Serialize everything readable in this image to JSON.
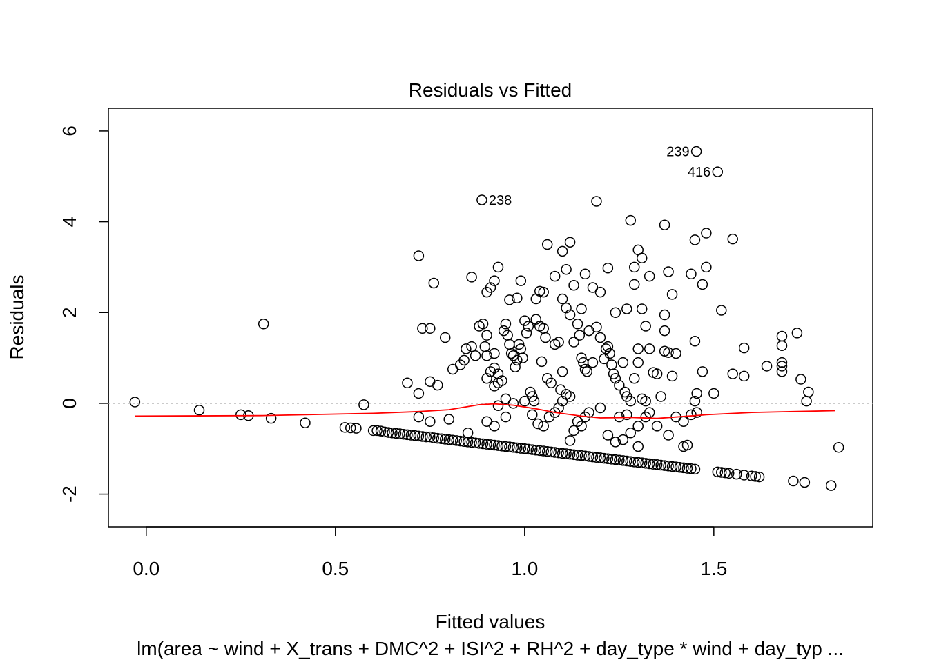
{
  "chart_data": {
    "type": "scatter",
    "title": "Residuals vs Fitted",
    "xlabel": "Fitted values",
    "ylabel": "Residuals",
    "subtitle": "lm(area ~ wind + X_trans + DMC^2 + ISI^2 + RH^2 + day_type * wind + day_typ ...",
    "xlim": [
      -0.1,
      1.92
    ],
    "ylim": [
      -2.72,
      6.5
    ],
    "x_ticks": [
      0.0,
      0.5,
      1.0,
      1.5
    ],
    "x_tick_labels": [
      "0.0",
      "0.5",
      "1.0",
      "1.5"
    ],
    "y_ticks": [
      -2,
      0,
      2,
      4,
      6
    ],
    "y_tick_labels": [
      "-2",
      "0",
      "2",
      "4",
      "6"
    ],
    "reference_line": {
      "y": 0,
      "style": "dotted",
      "color": "#aaaaaa"
    },
    "smooth_line": {
      "color": "#ff0000",
      "points": [
        [
          -0.03,
          -0.28
        ],
        [
          0.3,
          -0.27
        ],
        [
          0.6,
          -0.22
        ],
        [
          0.72,
          -0.18
        ],
        [
          0.8,
          -0.14
        ],
        [
          0.88,
          -0.03
        ],
        [
          0.92,
          -0.01
        ],
        [
          0.97,
          -0.04
        ],
        [
          1.03,
          -0.12
        ],
        [
          1.08,
          -0.2
        ],
        [
          1.15,
          -0.28
        ],
        [
          1.2,
          -0.32
        ],
        [
          1.28,
          -0.31
        ],
        [
          1.35,
          -0.33
        ],
        [
          1.4,
          -0.3
        ],
        [
          1.48,
          -0.25
        ],
        [
          1.6,
          -0.2
        ],
        [
          1.82,
          -0.16
        ]
      ]
    },
    "labeled_points": [
      {
        "label": "239",
        "x": 1.454,
        "y": 5.55
      },
      {
        "label": "416",
        "x": 1.51,
        "y": 5.1
      },
      {
        "label": "238",
        "x": 0.887,
        "y": 4.48
      }
    ],
    "points": [
      [
        -0.03,
        0.03
      ],
      [
        0.14,
        -0.15
      ],
      [
        0.25,
        -0.25
      ],
      [
        0.27,
        -0.27
      ],
      [
        0.31,
        1.75
      ],
      [
        0.33,
        -0.33
      ],
      [
        0.42,
        -0.43
      ],
      [
        0.525,
        -0.53
      ],
      [
        0.54,
        -0.54
      ],
      [
        0.555,
        -0.55
      ],
      [
        0.575,
        -0.03
      ],
      [
        0.887,
        4.48
      ],
      [
        1.19,
        4.45
      ],
      [
        1.454,
        5.55
      ],
      [
        1.51,
        5.1
      ],
      [
        0.72,
        3.25
      ],
      [
        0.76,
        2.65
      ],
      [
        0.86,
        2.78
      ],
      [
        0.93,
        3.0
      ],
      [
        0.91,
        2.55
      ],
      [
        0.9,
        2.45
      ],
      [
        0.92,
        2.7
      ],
      [
        0.96,
        2.28
      ],
      [
        0.98,
        2.32
      ],
      [
        0.99,
        2.7
      ],
      [
        1.06,
        3.5
      ],
      [
        1.1,
        3.35
      ],
      [
        1.12,
        3.55
      ],
      [
        1.08,
        2.8
      ],
      [
        1.11,
        2.95
      ],
      [
        1.13,
        2.6
      ],
      [
        1.16,
        2.85
      ],
      [
        1.04,
        2.47
      ],
      [
        1.05,
        2.45
      ],
      [
        1.03,
        2.3
      ],
      [
        1.1,
        2.3
      ],
      [
        1.11,
        2.1
      ],
      [
        1.12,
        1.95
      ],
      [
        1.15,
        2.08
      ],
      [
        1.18,
        2.55
      ],
      [
        1.2,
        2.45
      ],
      [
        1.22,
        2.98
      ],
      [
        1.28,
        4.03
      ],
      [
        1.3,
        3.38
      ],
      [
        1.31,
        3.2
      ],
      [
        1.29,
        3.0
      ],
      [
        1.33,
        2.8
      ],
      [
        1.29,
        2.62
      ],
      [
        1.37,
        3.93
      ],
      [
        1.38,
        2.9
      ],
      [
        1.39,
        2.4
      ],
      [
        1.31,
        2.08
      ],
      [
        1.32,
        1.7
      ],
      [
        1.37,
        1.95
      ],
      [
        1.37,
        1.6
      ],
      [
        1.27,
        2.08
      ],
      [
        1.24,
        2.0
      ],
      [
        1.44,
        2.85
      ],
      [
        1.45,
        3.6
      ],
      [
        1.48,
        3.75
      ],
      [
        1.48,
        3.0
      ],
      [
        1.47,
        2.62
      ],
      [
        1.55,
        3.62
      ],
      [
        1.52,
        2.05
      ],
      [
        1.45,
        1.37
      ],
      [
        1.47,
        0.7
      ],
      [
        1.5,
        0.22
      ],
      [
        1.55,
        0.65
      ],
      [
        1.58,
        1.22
      ],
      [
        1.58,
        0.6
      ],
      [
        1.64,
        0.82
      ],
      [
        1.68,
        1.48
      ],
      [
        1.68,
        1.27
      ],
      [
        1.68,
        0.9
      ],
      [
        1.68,
        0.82
      ],
      [
        1.68,
        0.7
      ],
      [
        1.72,
        1.55
      ],
      [
        1.73,
        0.53
      ],
      [
        1.75,
        0.25
      ],
      [
        1.745,
        0.05
      ],
      [
        0.73,
        1.65
      ],
      [
        0.75,
        1.65
      ],
      [
        0.79,
        1.45
      ],
      [
        0.75,
        0.48
      ],
      [
        0.77,
        0.4
      ],
      [
        0.72,
        0.22
      ],
      [
        0.69,
        0.45
      ],
      [
        0.81,
        0.75
      ],
      [
        0.83,
        0.85
      ],
      [
        0.84,
        0.95
      ],
      [
        0.845,
        1.2
      ],
      [
        0.86,
        1.25
      ],
      [
        0.87,
        1.05
      ],
      [
        0.88,
        1.7
      ],
      [
        0.89,
        1.75
      ],
      [
        0.9,
        1.5
      ],
      [
        0.895,
        1.25
      ],
      [
        0.9,
        1.05
      ],
      [
        0.92,
        1.1
      ],
      [
        0.9,
        0.55
      ],
      [
        0.91,
        0.7
      ],
      [
        0.92,
        0.78
      ],
      [
        0.93,
        0.65
      ],
      [
        0.92,
        0.38
      ],
      [
        0.93,
        0.45
      ],
      [
        0.94,
        0.5
      ],
      [
        0.945,
        1.6
      ],
      [
        0.95,
        1.75
      ],
      [
        0.955,
        1.5
      ],
      [
        0.96,
        1.3
      ],
      [
        0.965,
        1.1
      ],
      [
        0.97,
        1.05
      ],
      [
        0.975,
        0.8
      ],
      [
        0.98,
        0.95
      ],
      [
        0.985,
        1.3
      ],
      [
        0.99,
        1.2
      ],
      [
        0.995,
        1.0
      ],
      [
        1.0,
        1.82
      ],
      [
        1.005,
        1.55
      ],
      [
        1.01,
        1.7
      ],
      [
        1.015,
        0.25
      ],
      [
        1.02,
        0.15
      ],
      [
        1.025,
        0.05
      ],
      [
        1.03,
        1.85
      ],
      [
        1.04,
        1.7
      ],
      [
        1.045,
        0.92
      ],
      [
        1.05,
        1.65
      ],
      [
        1.055,
        1.45
      ],
      [
        1.06,
        0.55
      ],
      [
        1.07,
        0.45
      ],
      [
        1.08,
        1.3
      ],
      [
        1.09,
        1.35
      ],
      [
        1.095,
        0.3
      ],
      [
        1.1,
        0.7
      ],
      [
        1.1,
        0.05
      ],
      [
        1.11,
        0.2
      ],
      [
        1.12,
        0.15
      ],
      [
        1.13,
        1.35
      ],
      [
        1.14,
        1.75
      ],
      [
        1.145,
        1.5
      ],
      [
        1.15,
        1.0
      ],
      [
        1.155,
        0.9
      ],
      [
        1.16,
        0.75
      ],
      [
        1.165,
        0.7
      ],
      [
        1.17,
        1.6
      ],
      [
        1.18,
        0.9
      ],
      [
        1.19,
        1.68
      ],
      [
        1.2,
        1.45
      ],
      [
        1.21,
        0.98
      ],
      [
        1.215,
        1.2
      ],
      [
        1.22,
        1.25
      ],
      [
        1.225,
        1.1
      ],
      [
        1.23,
        0.85
      ],
      [
        1.235,
        0.65
      ],
      [
        1.24,
        0.55
      ],
      [
        1.25,
        0.4
      ],
      [
        1.26,
        0.9
      ],
      [
        1.265,
        0.25
      ],
      [
        1.27,
        0.15
      ],
      [
        1.28,
        0.05
      ],
      [
        1.29,
        0.55
      ],
      [
        1.3,
        0.9
      ],
      [
        1.3,
        1.2
      ],
      [
        1.31,
        0.1
      ],
      [
        1.32,
        0.05
      ],
      [
        1.33,
        1.2
      ],
      [
        1.34,
        0.68
      ],
      [
        1.35,
        0.65
      ],
      [
        1.36,
        0.15
      ],
      [
        1.37,
        1.15
      ],
      [
        1.38,
        1.12
      ],
      [
        1.39,
        0.6
      ],
      [
        1.4,
        1.1
      ],
      [
        1.42,
        -0.4
      ],
      [
        1.44,
        -0.25
      ],
      [
        1.45,
        0.05
      ],
      [
        1.455,
        0.22
      ],
      [
        1.455,
        -0.2
      ],
      [
        0.93,
        -0.05
      ],
      [
        0.95,
        0.1
      ],
      [
        0.97,
        0.0
      ],
      [
        1.0,
        0.05
      ],
      [
        1.02,
        -0.25
      ],
      [
        1.035,
        -0.45
      ],
      [
        1.05,
        -0.5
      ],
      [
        1.065,
        -0.3
      ],
      [
        1.08,
        -0.2
      ],
      [
        1.09,
        -0.1
      ],
      [
        1.12,
        -0.82
      ],
      [
        1.13,
        -0.6
      ],
      [
        1.14,
        -0.4
      ],
      [
        1.15,
        -0.5
      ],
      [
        1.16,
        -0.3
      ],
      [
        1.17,
        -0.2
      ],
      [
        1.2,
        -0.1
      ],
      [
        1.22,
        -0.7
      ],
      [
        1.24,
        -0.85
      ],
      [
        1.26,
        -0.8
      ],
      [
        1.28,
        -0.65
      ],
      [
        1.3,
        -0.5
      ],
      [
        1.3,
        -0.95
      ],
      [
        1.32,
        -0.3
      ],
      [
        1.33,
        -0.2
      ],
      [
        1.35,
        -0.5
      ],
      [
        1.38,
        -0.7
      ],
      [
        1.4,
        -0.3
      ],
      [
        1.42,
        -0.95
      ],
      [
        1.43,
        -0.92
      ],
      [
        1.25,
        -0.3
      ],
      [
        1.27,
        -0.25
      ],
      [
        0.9,
        -0.4
      ],
      [
        0.92,
        -0.5
      ],
      [
        0.95,
        -0.3
      ],
      [
        0.75,
        -0.4
      ],
      [
        0.72,
        -0.3
      ],
      [
        0.8,
        -0.35
      ],
      [
        0.85,
        -0.65
      ],
      [
        0.6,
        -0.6
      ],
      [
        0.61,
        -0.6
      ],
      [
        0.62,
        -0.61
      ],
      [
        0.63,
        -0.63
      ],
      [
        0.64,
        -0.64
      ],
      [
        0.65,
        -0.65
      ],
      [
        0.66,
        -0.66
      ],
      [
        0.67,
        -0.67
      ],
      [
        0.68,
        -0.68
      ],
      [
        0.69,
        -0.69
      ],
      [
        0.7,
        -0.7
      ],
      [
        0.71,
        -0.71
      ],
      [
        0.72,
        -0.72
      ],
      [
        0.73,
        -0.73
      ],
      [
        0.74,
        -0.74
      ],
      [
        0.75,
        -0.74
      ],
      [
        0.76,
        -0.76
      ],
      [
        0.77,
        -0.77
      ],
      [
        0.78,
        -0.78
      ],
      [
        0.79,
        -0.79
      ],
      [
        0.8,
        -0.8
      ],
      [
        0.81,
        -0.81
      ],
      [
        0.82,
        -0.82
      ],
      [
        0.83,
        -0.83
      ],
      [
        0.84,
        -0.84
      ],
      [
        0.85,
        -0.85
      ],
      [
        0.86,
        -0.86
      ],
      [
        0.87,
        -0.87
      ],
      [
        0.88,
        -0.88
      ],
      [
        0.89,
        -0.89
      ],
      [
        0.9,
        -0.9
      ],
      [
        0.91,
        -0.91
      ],
      [
        0.92,
        -0.92
      ],
      [
        0.93,
        -0.93
      ],
      [
        0.94,
        -0.94
      ],
      [
        0.95,
        -0.95
      ],
      [
        0.96,
        -0.96
      ],
      [
        0.97,
        -0.97
      ],
      [
        0.98,
        -0.98
      ],
      [
        0.99,
        -0.99
      ],
      [
        1.0,
        -1.0
      ],
      [
        1.01,
        -1.01
      ],
      [
        1.02,
        -1.02
      ],
      [
        1.03,
        -1.03
      ],
      [
        1.04,
        -1.04
      ],
      [
        1.05,
        -1.05
      ],
      [
        1.06,
        -1.06
      ],
      [
        1.07,
        -1.07
      ],
      [
        1.08,
        -1.08
      ],
      [
        1.09,
        -1.09
      ],
      [
        1.1,
        -1.1
      ],
      [
        1.11,
        -1.11
      ],
      [
        1.12,
        -1.12
      ],
      [
        1.13,
        -1.13
      ],
      [
        1.14,
        -1.14
      ],
      [
        1.15,
        -1.15
      ],
      [
        1.16,
        -1.16
      ],
      [
        1.17,
        -1.17
      ],
      [
        1.18,
        -1.18
      ],
      [
        1.19,
        -1.19
      ],
      [
        1.2,
        -1.2
      ],
      [
        1.21,
        -1.21
      ],
      [
        1.22,
        -1.22
      ],
      [
        1.23,
        -1.23
      ],
      [
        1.24,
        -1.24
      ],
      [
        1.25,
        -1.25
      ],
      [
        1.26,
        -1.26
      ],
      [
        1.27,
        -1.27
      ],
      [
        1.28,
        -1.28
      ],
      [
        1.29,
        -1.29
      ],
      [
        1.3,
        -1.3
      ],
      [
        1.31,
        -1.31
      ],
      [
        1.32,
        -1.32
      ],
      [
        1.33,
        -1.33
      ],
      [
        1.34,
        -1.34
      ],
      [
        1.35,
        -1.35
      ],
      [
        1.36,
        -1.36
      ],
      [
        1.37,
        -1.37
      ],
      [
        1.38,
        -1.38
      ],
      [
        1.39,
        -1.39
      ],
      [
        1.4,
        -1.4
      ],
      [
        1.41,
        -1.41
      ],
      [
        1.42,
        -1.42
      ],
      [
        1.43,
        -1.43
      ],
      [
        1.44,
        -1.44
      ],
      [
        1.45,
        -1.45
      ],
      [
        1.51,
        -1.51
      ],
      [
        1.52,
        -1.52
      ],
      [
        1.53,
        -1.53
      ],
      [
        1.54,
        -1.54
      ],
      [
        1.56,
        -1.56
      ],
      [
        1.58,
        -1.58
      ],
      [
        1.6,
        -1.6
      ],
      [
        1.61,
        -1.61
      ],
      [
        1.62,
        -1.62
      ],
      [
        1.71,
        -1.71
      ],
      [
        1.74,
        -1.74
      ],
      [
        1.81,
        -1.81
      ],
      [
        1.83,
        -0.97
      ]
    ]
  }
}
